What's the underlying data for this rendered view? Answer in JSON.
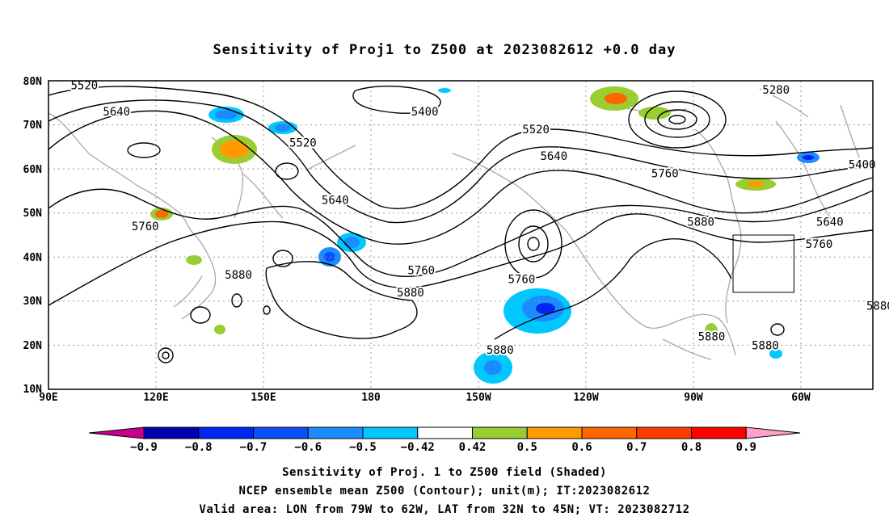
{
  "title": "Sensitivity of Proj1 to Z500 at 2023082612 +0.0 day",
  "map": {
    "lat_ticks": [
      "80N",
      "70N",
      "60N",
      "50N",
      "40N",
      "30N",
      "20N",
      "10N"
    ],
    "lon_ticks": [
      "90E",
      "120E",
      "150E",
      "180",
      "150W",
      "120W",
      "90W",
      "60W"
    ],
    "lon_range": [
      90,
      320
    ],
    "lat_range": [
      10,
      80
    ],
    "gridlines": true,
    "contour_labels": [
      {
        "text": "5520",
        "lon": 100,
        "lat": 79
      },
      {
        "text": "5640",
        "lon": 109,
        "lat": 73
      },
      {
        "text": "5400",
        "lon": 195,
        "lat": 73
      },
      {
        "text": "5520",
        "lon": 161,
        "lat": 66
      },
      {
        "text": "5520",
        "lon": 226,
        "lat": 69
      },
      {
        "text": "5640",
        "lon": 231,
        "lat": 63
      },
      {
        "text": "5280",
        "lon": 293,
        "lat": 78
      },
      {
        "text": "5400",
        "lon": 317,
        "lat": 61
      },
      {
        "text": "5760",
        "lon": 262,
        "lat": 59
      },
      {
        "text": "5640",
        "lon": 170,
        "lat": 53
      },
      {
        "text": "5640",
        "lon": 308,
        "lat": 48
      },
      {
        "text": "5880",
        "lon": 272,
        "lat": 48
      },
      {
        "text": "5760",
        "lon": 305,
        "lat": 43
      },
      {
        "text": "5760",
        "lon": 117,
        "lat": 47
      },
      {
        "text": "5760",
        "lon": 194,
        "lat": 37
      },
      {
        "text": "5760",
        "lon": 222,
        "lat": 35
      },
      {
        "text": "5880",
        "lon": 143,
        "lat": 36
      },
      {
        "text": "5880",
        "lon": 191,
        "lat": 32
      },
      {
        "text": "5880",
        "lon": 322,
        "lat": 29
      },
      {
        "text": "5880",
        "lon": 275,
        "lat": 22
      },
      {
        "text": "5880",
        "lon": 216,
        "lat": 19
      },
      {
        "text": "5880",
        "lon": 290,
        "lat": 20
      }
    ],
    "valid_box": {
      "lon_min": 281,
      "lon_max": 298,
      "lat_min": 32,
      "lat_max": 45
    }
  },
  "colorbar": {
    "labels": [
      "-0.9",
      "-0.8",
      "-0.7",
      "-0.6",
      "-0.5",
      "-0.42",
      "0.42",
      "0.5",
      "0.6",
      "0.7",
      "0.8",
      "0.9"
    ],
    "colors": [
      "#0000b0",
      "#0026f2",
      "#0a50f8",
      "#1a8cff",
      "#00c8ff",
      "#ffffff",
      "#9acd32",
      "#ff9a00",
      "#ff6600",
      "#ff3a00",
      "#ff0000"
    ],
    "low_end_color": "#c8008c",
    "high_end_color": "#ff9ec8"
  },
  "footer": {
    "line1": "Sensitivity of Proj. 1 to Z500 field (Shaded)",
    "line2": "NCEP ensemble mean Z500 (Contour); unit(m); IT:2023082612",
    "line3": "Valid area: LON from 79W to 62W, LAT from 32N to 45N; VT: 2023082712"
  }
}
